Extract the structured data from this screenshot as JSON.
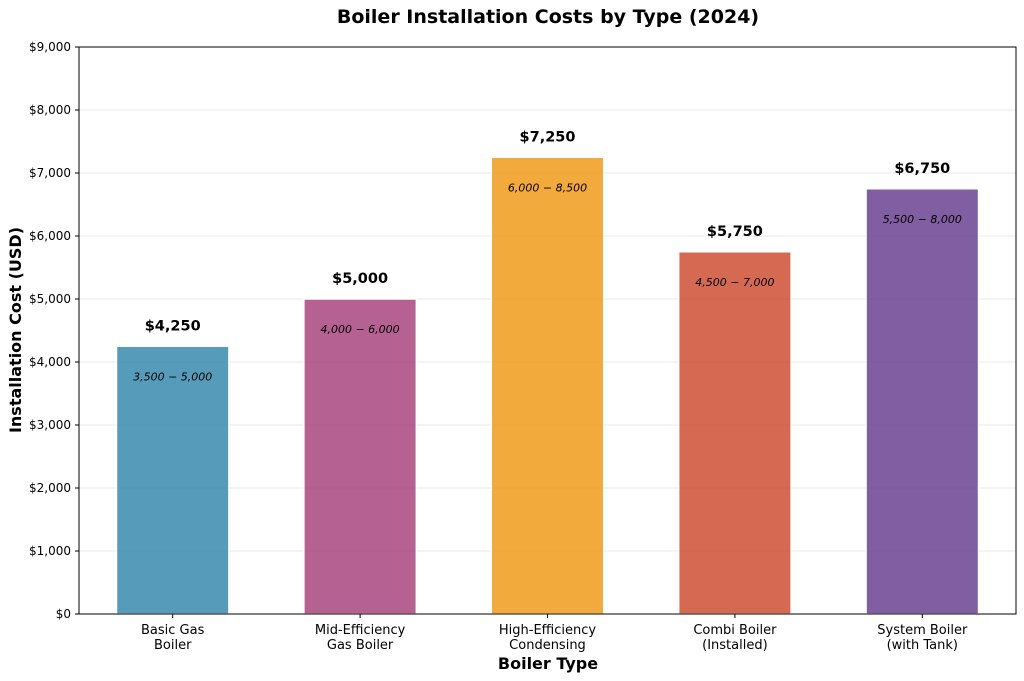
{
  "chart_data": {
    "type": "bar",
    "title": "Boiler Installation Costs by Type (2024)",
    "xlabel": "Boiler Type",
    "ylabel": "Installation Cost (USD)",
    "ylim": [
      0,
      9000
    ],
    "yticks": [
      0,
      1000,
      2000,
      3000,
      4000,
      5000,
      6000,
      7000,
      8000,
      9000
    ],
    "ytick_labels": [
      "$0",
      "$1,000",
      "$2,000",
      "$3,000",
      "$4,000",
      "$5,000",
      "$6,000",
      "$7,000",
      "$8,000",
      "$9,000"
    ],
    "grid": true,
    "categories": [
      [
        "Basic Gas",
        "Boiler"
      ],
      [
        "Mid-Efficiency",
        "Gas Boiler"
      ],
      [
        "High-Efficiency",
        "Condensing"
      ],
      [
        "Combi Boiler",
        "(Installed)"
      ],
      [
        "System Boiler",
        "(with Tank)"
      ]
    ],
    "values": [
      4250,
      5000,
      7250,
      5750,
      6750
    ],
    "value_labels": [
      "$4,250",
      "$5,000",
      "$7,250",
      "$5,750",
      "$6,750"
    ],
    "range_labels": [
      "3,500 − 5,000",
      "4,000 − 6,000",
      "6,000 − 8,500",
      "4,500 − 7,000",
      "5,500 − 8,000"
    ],
    "colors": [
      "#3a8ab0",
      "#a9467e",
      "#f09c1c",
      "#cf4f34",
      "#6a4291"
    ]
  }
}
